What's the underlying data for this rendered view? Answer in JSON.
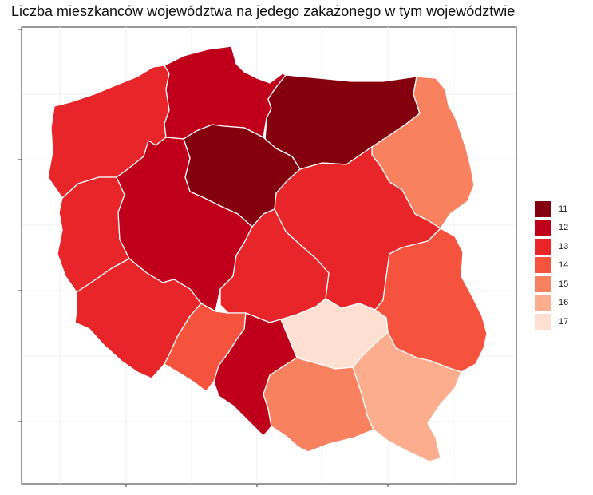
{
  "title": "Liczba mieszkanców województwa na jedego zakażonego w tym województwie",
  "legend": {
    "entries": [
      {
        "label": "11",
        "color": "#85000f"
      },
      {
        "label": "12",
        "color": "#c0001b"
      },
      {
        "label": "13",
        "color": "#e8262a"
      },
      {
        "label": "14",
        "color": "#f5533e"
      },
      {
        "label": "15",
        "color": "#f8825f"
      },
      {
        "label": "16",
        "color": "#fbad8d"
      },
      {
        "label": "17",
        "color": "#fde0d2"
      }
    ]
  },
  "chart_data": {
    "type": "choropleth",
    "grid": true,
    "legend_position": "right",
    "regions": [
      {
        "id": "pomorskie",
        "value": 12
      },
      {
        "id": "warminsko-mazurskie",
        "value": 11
      },
      {
        "id": "kujawsko-pomorskie",
        "value": 11
      },
      {
        "id": "zachodniopomorskie",
        "value": 13
      },
      {
        "id": "podlaskie",
        "value": 15
      },
      {
        "id": "lubuskie",
        "value": 13
      },
      {
        "id": "wielkopolskie",
        "value": 12
      },
      {
        "id": "mazowieckie",
        "value": 13
      },
      {
        "id": "lodzkie",
        "value": 13
      },
      {
        "id": "lubelskie",
        "value": 14
      },
      {
        "id": "dolnoslaskie",
        "value": 13
      },
      {
        "id": "opolskie",
        "value": 14
      },
      {
        "id": "slaskie",
        "value": 12
      },
      {
        "id": "swietokrzyskie",
        "value": 17
      },
      {
        "id": "malopolskie",
        "value": 15
      },
      {
        "id": "podkarpackie",
        "value": 16
      }
    ]
  }
}
